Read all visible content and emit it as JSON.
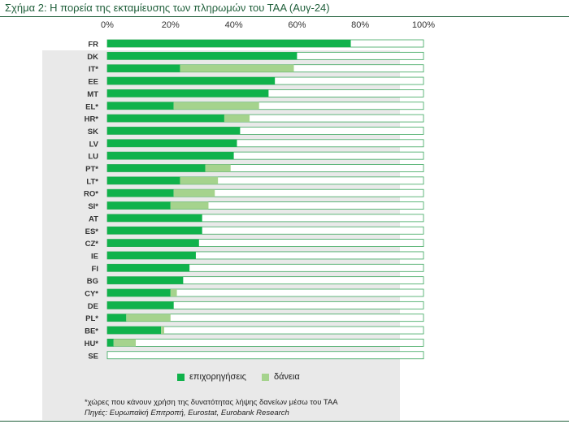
{
  "title": "Σχήμα 2: Η πορεία της εκταμίευσης των πληρωμών του ΤΑΑ (Αυγ-24)",
  "colors": {
    "grants": "#10b24b",
    "loans": "#a5d38d",
    "remaining_fill": "#ffffff",
    "remaining_stroke": "#3aa65c",
    "title": "#1f5f3a",
    "panel": "#e9e9e9"
  },
  "chart_data": {
    "type": "bar",
    "orientation": "horizontal",
    "stacked": true,
    "categories": [
      "FR",
      "DK",
      "IT*",
      "EE",
      "MT",
      "EL*",
      "HR*",
      "SK",
      "LV",
      "LU",
      "PT*",
      "LT*",
      "RO*",
      "SI*",
      "AT",
      "ES*",
      "CZ*",
      "IE",
      "FI",
      "BG",
      "CY*",
      "DE",
      "PL*",
      "BE*",
      "HU*",
      "SE"
    ],
    "series": [
      {
        "name": "επιχορηγήσεις",
        "color": "#10b24b",
        "values": [
          77,
          60,
          23,
          53,
          51,
          21,
          37,
          42,
          41,
          40,
          31,
          23,
          21,
          20,
          30,
          30,
          29,
          28,
          26,
          24,
          20,
          21,
          6,
          17,
          2,
          0
        ]
      },
      {
        "name": "δάνεια",
        "color": "#a5d38d",
        "values": [
          0,
          0,
          36,
          0,
          0,
          27,
          8,
          0,
          0,
          0,
          8,
          12,
          13,
          12,
          0,
          0,
          0,
          0,
          0,
          0,
          2,
          0,
          14,
          1,
          7,
          0
        ]
      }
    ],
    "xlim": [
      0,
      100
    ],
    "xticks": [
      "0%",
      "20%",
      "40%",
      "60%",
      "80%",
      "100%"
    ],
    "legend_position": "bottom"
  },
  "legend": {
    "grants": "επιχορηγήσεις",
    "loans": "δάνεια"
  },
  "footnote": "*χώρες που κάνουν χρήση της δυνατότητας λήψης δανείων μέσω του ΤΑΑ",
  "sources": "Πηγές: Ευρωπαϊκή Επιτροπή, Eurostat, Eurobank Research"
}
